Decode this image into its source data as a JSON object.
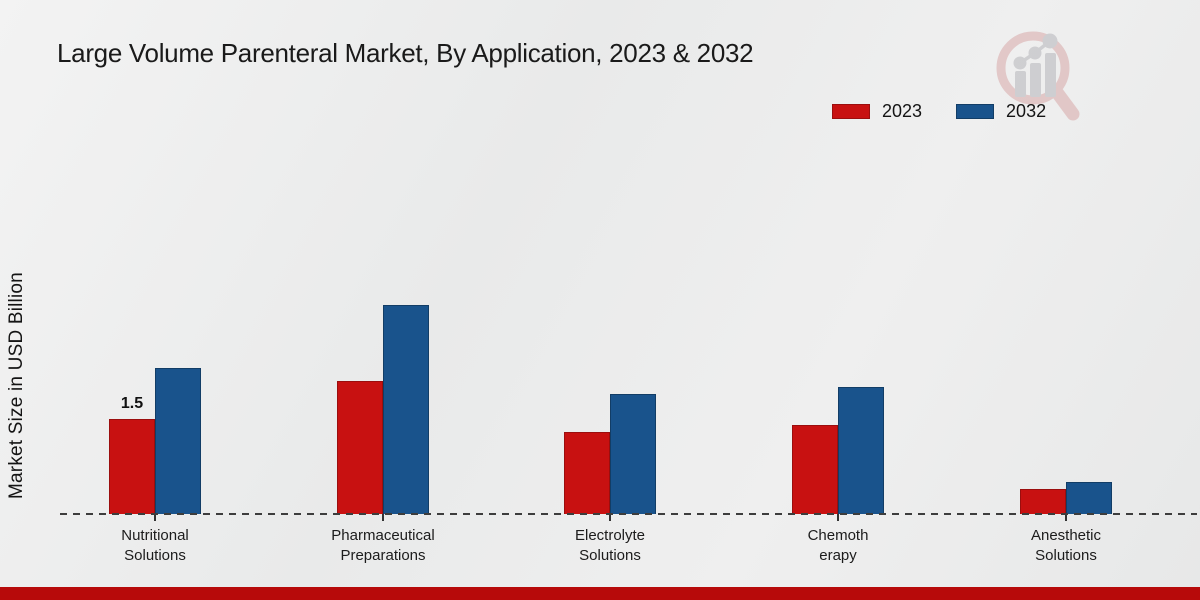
{
  "title": "Large Volume Parenteral Market, By Application, 2023 & 2032",
  "watermark_icon": "magnifier-bar-chart-logo",
  "colors": {
    "accent_red": "#c81111",
    "accent_blue": "#19538c",
    "footer_band": "#b70a0a",
    "background": "#ebebeb"
  },
  "chart_data": {
    "type": "bar",
    "title": "Large Volume Parenteral Market, By Application, 2023 & 2032",
    "xlabel": "",
    "ylabel": "Market Size in USD Billion",
    "categories": [
      "Nutritional Solutions",
      "Pharmaceutical Preparations",
      "Electrolyte Solutions",
      "Chemotherapy",
      "Anesthetic Solutions"
    ],
    "categories_wrapped": [
      [
        "Nutritional",
        "Solutions"
      ],
      [
        "Pharmaceutical",
        "Preparations"
      ],
      [
        "Electrolyte",
        "Solutions"
      ],
      [
        "Chemoth",
        "erapy"
      ],
      [
        "Anesthetic",
        "Solutions"
      ]
    ],
    "series": [
      {
        "name": "2023",
        "color": "#c81111",
        "border_color": "#9b0e0e",
        "values": [
          1.5,
          2.1,
          1.3,
          1.4,
          0.4
        ]
      },
      {
        "name": "2032",
        "color": "#19538c",
        "border_color": "#123d66",
        "values": [
          2.3,
          3.3,
          1.9,
          2.0,
          0.5
        ]
      }
    ],
    "ylim": [
      0,
      3.5
    ],
    "grid": false,
    "legend_position": "top-right",
    "baseline_style": "dashed",
    "annotations": [
      {
        "text": "1.5",
        "series_index": 0,
        "category_index": 0
      }
    ]
  }
}
